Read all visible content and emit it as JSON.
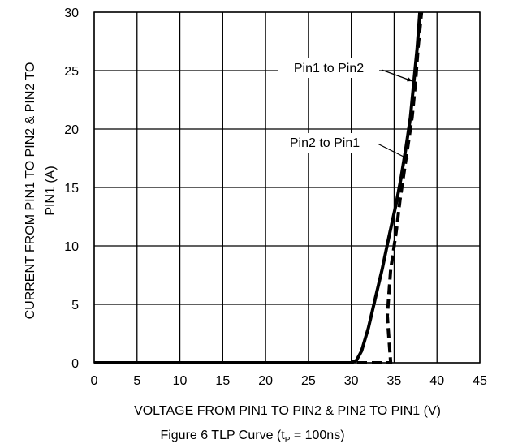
{
  "chart_data": {
    "type": "line",
    "title": "",
    "xlabel": "VOLTAGE FROM PIN1 TO PIN2 & PIN2 TO PIN1 (V)",
    "ylabel_line1": "CURRENT FROM PIN1 TO PIN2 & PIN2 TO",
    "ylabel_line2": "PIN1 (A)",
    "xlim": [
      0,
      45
    ],
    "ylim": [
      0,
      30
    ],
    "xticks": [
      0,
      5,
      10,
      15,
      20,
      25,
      30,
      35,
      40,
      45
    ],
    "yticks": [
      0,
      5,
      10,
      15,
      20,
      25,
      30
    ],
    "grid": true,
    "series": [
      {
        "name": "Pin1 to Pin2",
        "style": "solid",
        "x": [
          0,
          10,
          20,
          30,
          30.6,
          31.2,
          32.0,
          32.8,
          33.6,
          34.4,
          35.2,
          35.8,
          36.4,
          36.9,
          37.3,
          37.7,
          38.0
        ],
        "y": [
          0,
          0,
          0,
          0,
          0.2,
          1.0,
          3.0,
          5.5,
          8.0,
          10.8,
          13.5,
          15.8,
          18.5,
          21.0,
          24.0,
          27.0,
          30.0
        ]
      },
      {
        "name": "Pin2 to Pin1",
        "style": "dashed",
        "x": [
          0,
          10,
          20,
          30,
          34.6,
          34.2,
          34.6,
          35.2,
          35.7,
          36.2,
          36.6,
          37.1,
          37.5,
          37.8,
          38.2
        ],
        "y": [
          0,
          0,
          0,
          0,
          0,
          4.0,
          8.0,
          11.0,
          14.0,
          16.5,
          18.5,
          21.0,
          24.0,
          27.0,
          30.0
        ]
      }
    ],
    "annotations": [
      {
        "text": "Pin1 to Pin2",
        "series": 0
      },
      {
        "text": "Pin2 to Pin1",
        "series": 1
      }
    ]
  },
  "caption": {
    "prefix": "Figure 6  TLP Curve (t",
    "subscript": "P",
    "suffix": " = 100ns)"
  }
}
